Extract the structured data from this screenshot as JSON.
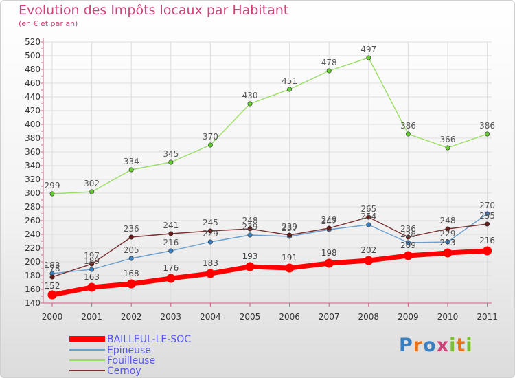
{
  "title": "Evolution des Impôts locaux par Habitant",
  "subtitle": "(en € et par an)",
  "logo": {
    "text": "Proxiti"
  },
  "chart_data": {
    "type": "line",
    "title": "Evolution des Impôts locaux par Habitant",
    "subtitle": "(en € et par an)",
    "xlabel": "",
    "ylabel": "",
    "x": [
      "2000",
      "2001",
      "2002",
      "2003",
      "2004",
      "2005",
      "2006",
      "2007",
      "2008",
      "2009",
      "2010",
      "2011"
    ],
    "ylim": [
      140,
      520
    ],
    "yticks": [
      140,
      160,
      180,
      200,
      220,
      240,
      260,
      280,
      300,
      320,
      340,
      360,
      380,
      400,
      420,
      440,
      460,
      480,
      500,
      520
    ],
    "grid": true,
    "legend_position": "bottom-left",
    "series": [
      {
        "name": "BAILLEUL-LE-SOC",
        "color": "#ff0000",
        "point_color": "#ff0000",
        "label_color": "#444444",
        "width": "thick",
        "values": [
          152,
          163,
          168,
          176,
          183,
          193,
          191,
          198,
          202,
          209,
          213,
          216
        ],
        "labels": [
          "152",
          "163",
          "168",
          "176",
          "183",
          "193",
          "191",
          "198",
          "202",
          "209",
          "213",
          "216"
        ]
      },
      {
        "name": "Epineuse",
        "color": "#6aa0cf",
        "point_color": "#3a7fc1",
        "label_color": "#555555",
        "width": "thin",
        "values": [
          183,
          189,
          205,
          216,
          229,
          239,
          237,
          247,
          254,
          228,
          229,
          270
        ],
        "labels": [
          "183",
          "189",
          "205",
          "216",
          "229",
          "239",
          "237",
          "247",
          "254",
          "228",
          "229",
          "270"
        ]
      },
      {
        "name": "Fouilleuse",
        "color": "#99dd66",
        "point_color": "#66cc33",
        "label_color": "#555555",
        "width": "thin",
        "values": [
          299,
          302,
          334,
          345,
          370,
          430,
          451,
          478,
          497,
          386,
          366,
          386
        ],
        "labels": [
          "299",
          "302",
          "334",
          "345",
          "370",
          "430",
          "451",
          "478",
          "497",
          "386",
          "366",
          "386"
        ]
      },
      {
        "name": "Cernoy",
        "color": "#7a3030",
        "point_color": "#661a1a",
        "label_color": "#555555",
        "width": "thin",
        "values": [
          178,
          197,
          236,
          241,
          245,
          248,
          239,
          249,
          265,
          236,
          248,
          255
        ],
        "labels": [
          "178",
          "197",
          "236",
          "241",
          "245",
          "248",
          "239",
          "249",
          "265",
          "236",
          "248",
          "255"
        ]
      }
    ]
  },
  "colors": {
    "title": "#d0427a",
    "axis": "#d06080",
    "grid": "#dddddd",
    "tick_label": "#333333",
    "legend_text": "#5555ee"
  }
}
